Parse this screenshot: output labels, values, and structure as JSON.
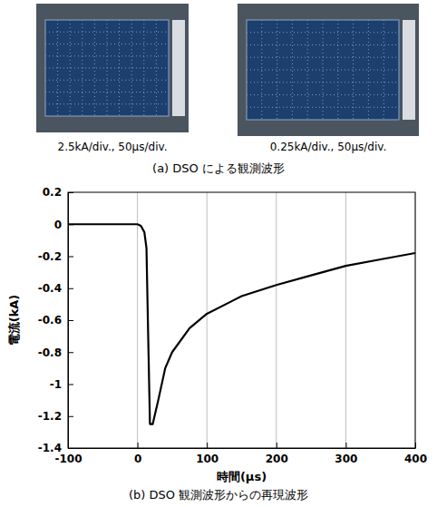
{
  "scope_images": {
    "screens": [
      {
        "label": "2.5kA/div., 50μs/div."
      },
      {
        "label": "0.25kA/div., 50μs/div."
      }
    ],
    "caption": "(a) DSO による観測波形"
  },
  "chart_data": {
    "type": "line",
    "caption": "(b) DSO 観測波形からの再現波形",
    "x_label": "時間(μs)",
    "y_label": "電流(kA)",
    "x": [
      -100,
      0,
      5,
      10,
      13,
      15,
      18,
      22,
      30,
      40,
      50,
      75,
      100,
      150,
      200,
      250,
      300,
      350,
      400
    ],
    "values": [
      0,
      0,
      -0.01,
      -0.05,
      -0.15,
      -0.6,
      -1.25,
      -1.25,
      -1.1,
      -0.9,
      -0.8,
      -0.65,
      -0.56,
      -0.45,
      -0.38,
      -0.32,
      -0.26,
      -0.22,
      -0.18
    ],
    "color": "#000000",
    "xlim": [
      -100,
      400
    ],
    "xticks": [
      -100,
      0,
      100,
      200,
      300,
      400
    ],
    "ylim": [
      -1.4,
      0.2
    ],
    "yticks": [
      0.2,
      0,
      -0.2,
      -0.4,
      -0.6,
      -0.8,
      -1,
      -1.2,
      -1.4
    ],
    "grid": "x"
  }
}
